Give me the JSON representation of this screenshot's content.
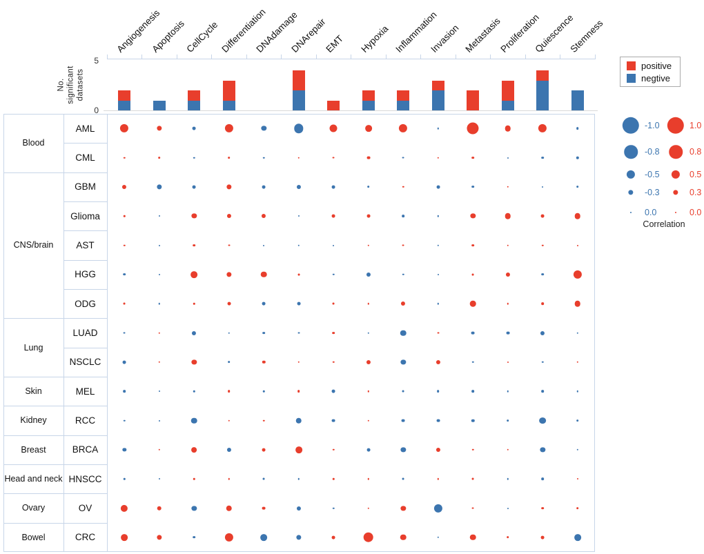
{
  "colors": {
    "positive": "#e83e2c",
    "negative": "#3c75af",
    "grid_border": "#c7d5e8",
    "axis_baseline": "#d8d8d8",
    "text": "#111111"
  },
  "top_legend": {
    "positive_label": "positive",
    "negative_label": "negtive"
  },
  "size_legend": {
    "title": "Correlation",
    "negative_labels": [
      "-1.0",
      "-0.8",
      "-0.5",
      "-0.3",
      "0.0"
    ],
    "negative_values": [
      -1.0,
      -0.8,
      -0.5,
      -0.3,
      0.0
    ],
    "positive_labels": [
      "1.0",
      "0.8",
      "0.5",
      "0.3",
      "0.0"
    ],
    "positive_values": [
      1.0,
      0.8,
      0.5,
      0.3,
      0.0
    ]
  },
  "chart_data": [
    {
      "type": "bar",
      "stacked": true,
      "title": "",
      "xlabel": "",
      "ylabel": "No. significant datasets",
      "ylim": [
        0,
        5
      ],
      "yticks": [
        0,
        5
      ],
      "grid": false,
      "legend_position": "top-right",
      "categories": [
        "Angiogenesis",
        "Apoptosis",
        "CellCycle",
        "Differentiation",
        "DNAdamage",
        "DNArepair",
        "EMT",
        "Hypoxia",
        "Inflammation",
        "Invasion",
        "Metastasis",
        "Proliferation",
        "Quiescence",
        "Stemness"
      ],
      "series": [
        {
          "name": "negtive",
          "stack_order": "bottom",
          "values": [
            1,
            1,
            1,
            1,
            0,
            2,
            0,
            1,
            1,
            2,
            0,
            1,
            3,
            2
          ]
        },
        {
          "name": "positive",
          "stack_order": "top",
          "values": [
            1,
            0,
            1,
            2,
            0,
            2,
            1,
            1,
            1,
            1,
            2,
            2,
            1,
            0
          ]
        }
      ]
    },
    {
      "type": "bubble-matrix",
      "value_name": "Correlation",
      "value_range": [
        -1,
        1
      ],
      "size_encoding": "abs(correlation)",
      "color_encoding": "sign: positive=red, negative=blue",
      "columns": [
        "Angiogenesis",
        "Apoptosis",
        "CellCycle",
        "Differentiation",
        "DNAdamage",
        "DNArepair",
        "EMT",
        "Hypoxia",
        "Inflammation",
        "Invasion",
        "Metastasis",
        "Proliferation",
        "Quiescence",
        "Stemness"
      ],
      "rows": [
        {
          "group": "Blood",
          "label": "AML",
          "values": [
            0.5,
            0.3,
            -0.2,
            0.5,
            -0.3,
            -0.55,
            0.45,
            0.4,
            0.5,
            -0.1,
            0.7,
            0.35,
            0.5,
            -0.15
          ]
        },
        {
          "group": "Blood",
          "label": "CML",
          "values": [
            0.1,
            0.15,
            -0.1,
            0.15,
            -0.1,
            0.1,
            0.12,
            0.2,
            -0.12,
            0.1,
            0.15,
            -0.08,
            -0.15,
            -0.18
          ]
        },
        {
          "group": "CNS/brain",
          "label": "GBM",
          "values": [
            0.25,
            -0.3,
            -0.2,
            0.3,
            -0.2,
            -0.25,
            -0.2,
            -0.15,
            0.1,
            -0.2,
            -0.15,
            0.1,
            -0.08,
            -0.15
          ]
        },
        {
          "group": "CNS/brain",
          "label": "Glioma",
          "values": [
            0.1,
            -0.08,
            0.3,
            0.25,
            0.25,
            -0.08,
            0.2,
            0.2,
            -0.15,
            -0.1,
            0.3,
            0.35,
            0.2,
            0.35
          ]
        },
        {
          "group": "CNS/brain",
          "label": "AST",
          "values": [
            0.1,
            -0.08,
            0.15,
            0.12,
            -0.08,
            -0.1,
            -0.08,
            0.1,
            0.12,
            -0.1,
            0.15,
            0.1,
            0.1,
            0.08
          ]
        },
        {
          "group": "CNS/brain",
          "label": "HGG",
          "values": [
            -0.15,
            -0.08,
            0.4,
            0.3,
            0.35,
            0.12,
            -0.1,
            -0.25,
            -0.1,
            -0.08,
            0.12,
            0.25,
            -0.15,
            0.5
          ]
        },
        {
          "group": "CNS/brain",
          "label": "ODG",
          "values": [
            0.12,
            -0.1,
            0.1,
            0.2,
            -0.2,
            -0.2,
            0.12,
            0.1,
            0.25,
            -0.1,
            0.35,
            0.1,
            0.15,
            0.35
          ]
        },
        {
          "group": "Lung",
          "label": "LUAD",
          "values": [
            -0.12,
            0.1,
            -0.25,
            -0.1,
            -0.15,
            -0.12,
            0.15,
            -0.1,
            -0.35,
            0.12,
            -0.2,
            -0.2,
            -0.25,
            -0.1
          ]
        },
        {
          "group": "Lung",
          "label": "NSCLC",
          "values": [
            -0.2,
            0.1,
            0.3,
            -0.15,
            0.18,
            0.1,
            0.1,
            0.25,
            -0.3,
            0.25,
            -0.1,
            0.08,
            -0.1,
            0.1
          ]
        },
        {
          "group": "Skin",
          "label": "MEL",
          "values": [
            -0.15,
            -0.08,
            -0.1,
            0.15,
            -0.1,
            0.15,
            -0.2,
            0.1,
            -0.12,
            -0.15,
            -0.15,
            -0.1,
            -0.15,
            -0.1
          ]
        },
        {
          "group": "Kidney",
          "label": "RCC",
          "values": [
            -0.1,
            -0.07,
            -0.35,
            0.1,
            0.1,
            -0.35,
            -0.2,
            0.1,
            -0.2,
            -0.2,
            -0.18,
            -0.15,
            -0.4,
            -0.15
          ]
        },
        {
          "group": "Breast",
          "label": "BRCA",
          "values": [
            -0.22,
            0.1,
            0.32,
            -0.25,
            0.2,
            0.4,
            0.1,
            -0.2,
            -0.3,
            0.25,
            0.1,
            0.1,
            -0.3,
            -0.1
          ]
        },
        {
          "group": "Head and neck",
          "label": "HNSCC",
          "values": [
            -0.1,
            -0.08,
            0.1,
            0.1,
            -0.12,
            -0.1,
            0.1,
            0.1,
            -0.12,
            0.1,
            0.12,
            -0.1,
            -0.15,
            0.08
          ]
        },
        {
          "group": "Ovary",
          "label": "OV",
          "values": [
            0.42,
            0.27,
            -0.3,
            0.35,
            0.2,
            -0.25,
            -0.1,
            0.1,
            0.3,
            -0.5,
            0.12,
            -0.08,
            0.15,
            0.15
          ]
        },
        {
          "group": "Bowel",
          "label": "CRC",
          "values": [
            0.4,
            0.3,
            -0.15,
            0.5,
            -0.4,
            -0.3,
            0.2,
            0.6,
            0.35,
            -0.1,
            0.35,
            0.15,
            0.2,
            -0.4
          ]
        }
      ]
    }
  ]
}
